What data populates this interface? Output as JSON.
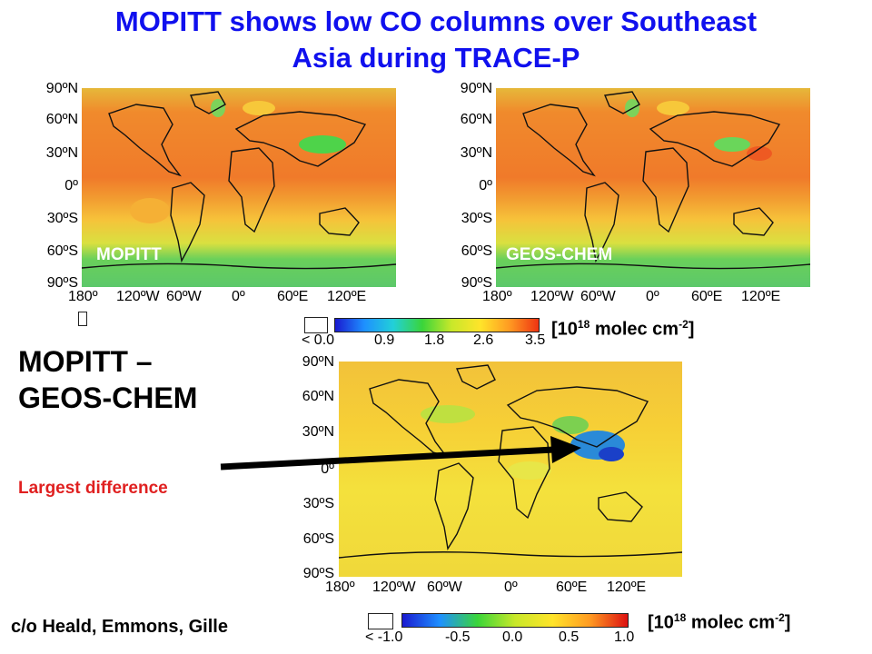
{
  "title_line1": "MOPITT shows low CO columns over Southeast",
  "title_line2": "Asia during TRACE-P",
  "lat_ticks": [
    "90ºN",
    "60ºN",
    "30ºN",
    "0º",
    "30ºS",
    "60ºS",
    "90ºS"
  ],
  "lon_ticks": [
    "180º",
    "120ºW",
    "60ºW",
    "0º",
    "60ºE",
    "120ºE"
  ],
  "panels": {
    "mopitt_label": "MOPITT",
    "geos_label": "GEOS-CHEM"
  },
  "colorbar_top": {
    "ticks": [
      "< 0.0",
      "0.9",
      "1.8",
      "2.6",
      "3.5"
    ],
    "unit_prefix": "[10",
    "unit_exp": "18",
    "unit_mid": " molec cm",
    "unit_exp2": "-2",
    "unit_suffix": "]"
  },
  "colorbar_bottom": {
    "ticks": [
      "< -1.0",
      "-0.5",
      "0.0",
      "0.5",
      "1.0"
    ],
    "unit_prefix": "[10",
    "unit_exp": "18",
    "unit_mid": " molec cm",
    "unit_exp2": "-2",
    "unit_suffix": "]"
  },
  "difference_title_line1": "MOPITT –",
  "difference_title_line2": "GEOS-CHEM",
  "annotation": "Largest difference",
  "credit": "c/o Heald, Emmons, Gille",
  "colors": {
    "title": "#1010ee",
    "annotation": "#e02020",
    "arrow": "#000000"
  }
}
